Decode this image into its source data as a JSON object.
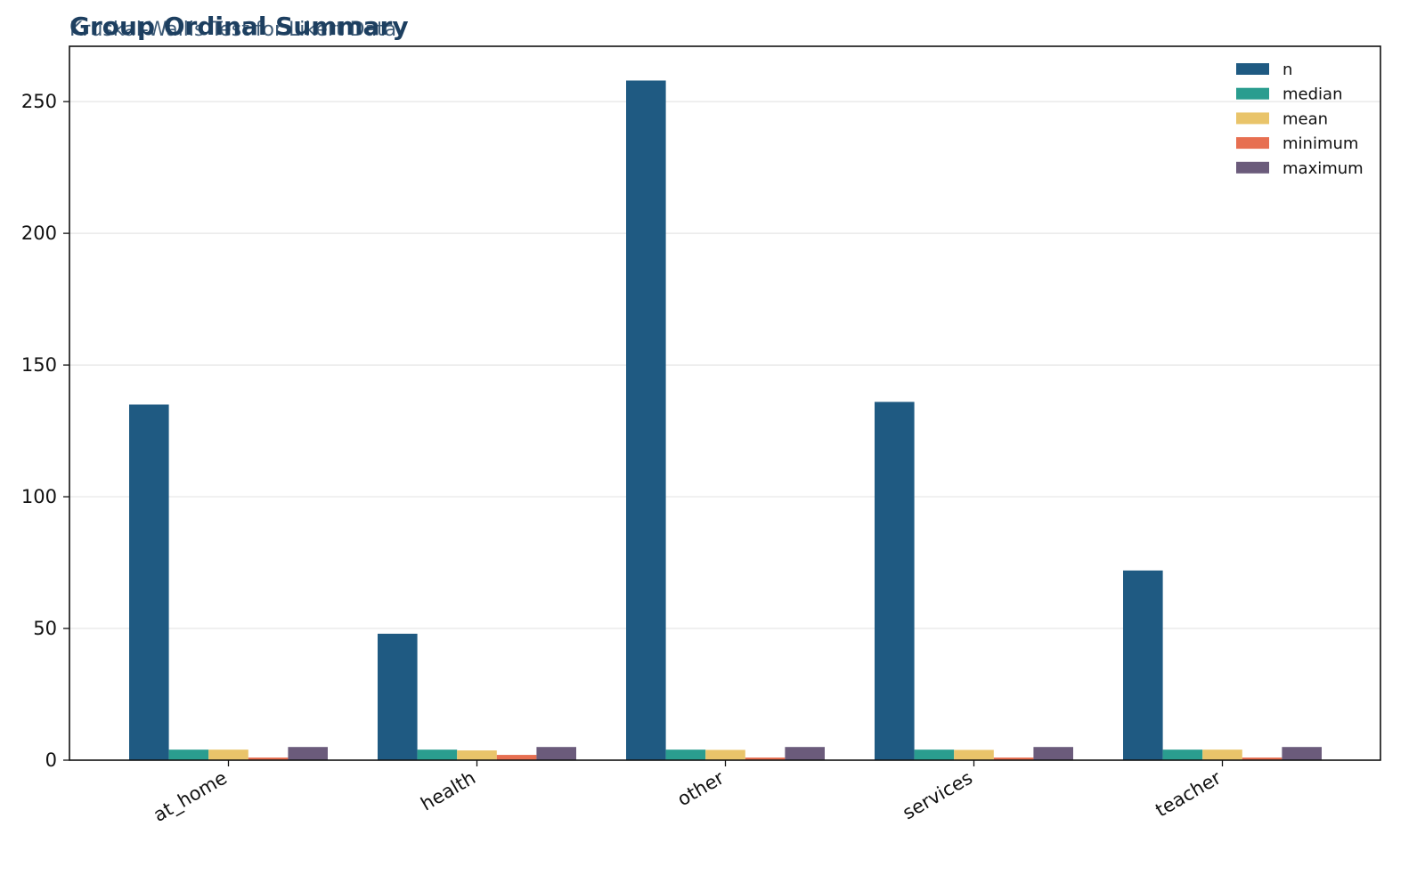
{
  "chart_data": {
    "type": "bar",
    "title": "Group Ordinal Summary",
    "subtitle": "Kruskal-Wallis Test for Likert Data",
    "xlabel": "",
    "ylabel": "",
    "categories": [
      "at_home",
      "health",
      "other",
      "services",
      "teacher"
    ],
    "series": [
      {
        "name": "n",
        "color": "#1f5a82",
        "values": [
          135,
          48,
          258,
          136,
          72
        ]
      },
      {
        "name": "median",
        "color": "#2a9d8f",
        "values": [
          4,
          4,
          4,
          4,
          4
        ]
      },
      {
        "name": "mean",
        "color": "#e9c46a",
        "values": [
          4.0,
          3.7,
          3.9,
          3.9,
          4.0
        ]
      },
      {
        "name": "minimum",
        "color": "#e76f51",
        "values": [
          1,
          2,
          1,
          1,
          1
        ]
      },
      {
        "name": "maximum",
        "color": "#6b5b7b",
        "values": [
          5,
          5,
          5,
          5,
          5
        ]
      }
    ],
    "ylim": [
      0,
      271
    ],
    "yticks": [
      0,
      50,
      100,
      150,
      200,
      250
    ],
    "grid": "y",
    "legend": "top-right"
  }
}
